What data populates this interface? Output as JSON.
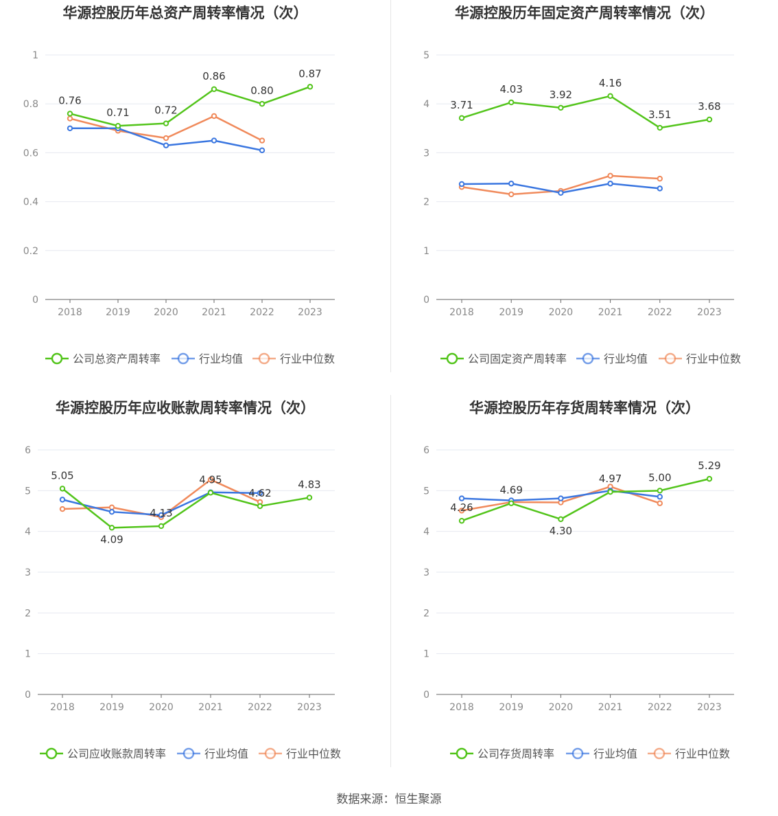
{
  "source": "数据来源：恒生聚源",
  "colors": {
    "company": "#52c41a",
    "avg": "#3a76e0",
    "median": "#f0895a",
    "axis": "#666666",
    "grid": "#e6e8f0",
    "text": "#333333"
  },
  "legend_labels": {
    "avg": "行业均值",
    "median": "行业中位数"
  },
  "chart_data": [
    {
      "type": "line",
      "title": "华源控股历年总资产周转率情况（次）",
      "categories": [
        "2018",
        "2019",
        "2020",
        "2021",
        "2022",
        "2023"
      ],
      "yticks": [
        "0",
        "0.2",
        "0.4",
        "0.6",
        "0.8",
        "1"
      ],
      "ylim": [
        0,
        1
      ],
      "series": [
        {
          "key": "company",
          "name": "公司总资产周转率",
          "values": [
            0.76,
            0.71,
            0.72,
            0.86,
            0.8,
            0.87
          ],
          "labels": [
            "0.76",
            "0.71",
            "0.72",
            "0.86",
            "0.80",
            "0.87"
          ]
        },
        {
          "key": "avg",
          "name": "行业均值",
          "values": [
            0.7,
            0.7,
            0.63,
            0.65,
            0.61,
            null
          ]
        },
        {
          "key": "median",
          "name": "行业中位数",
          "values": [
            0.74,
            0.69,
            0.66,
            0.75,
            0.65,
            null
          ]
        }
      ]
    },
    {
      "type": "line",
      "title": "华源控股历年固定资产周转率情况（次）",
      "categories": [
        "2018",
        "2019",
        "2020",
        "2021",
        "2022",
        "2023"
      ],
      "yticks": [
        "0",
        "1",
        "2",
        "3",
        "4",
        "5"
      ],
      "ylim": [
        0,
        5
      ],
      "series": [
        {
          "key": "company",
          "name": "公司固定资产周转率",
          "values": [
            3.71,
            4.03,
            3.92,
            4.16,
            3.51,
            3.68
          ],
          "labels": [
            "3.71",
            "4.03",
            "3.92",
            "4.16",
            "3.51",
            "3.68"
          ]
        },
        {
          "key": "avg",
          "name": "行业均值",
          "values": [
            2.36,
            2.37,
            2.18,
            2.37,
            2.27,
            null
          ]
        },
        {
          "key": "median",
          "name": "行业中位数",
          "values": [
            2.3,
            2.15,
            2.22,
            2.53,
            2.47,
            null
          ]
        }
      ]
    },
    {
      "type": "line",
      "title": "华源控股历年应收账款周转率情况（次）",
      "categories": [
        "2018",
        "2019",
        "2020",
        "2021",
        "2022",
        "2023"
      ],
      "yticks": [
        "0",
        "1",
        "2",
        "3",
        "4",
        "5",
        "6"
      ],
      "ylim": [
        0,
        6
      ],
      "series": [
        {
          "key": "company",
          "name": "公司应收账款周转率",
          "values": [
            5.05,
            4.09,
            4.13,
            4.95,
            4.62,
            4.83
          ],
          "labels": [
            "5.05",
            "4.09",
            "4.13",
            "4.95",
            "4.62",
            "4.83"
          ]
        },
        {
          "key": "avg",
          "name": "行业均值",
          "values": [
            4.78,
            4.48,
            4.4,
            4.96,
            4.94,
            null
          ]
        },
        {
          "key": "median",
          "name": "行业中位数",
          "values": [
            4.55,
            4.59,
            4.35,
            5.27,
            4.72,
            null
          ]
        }
      ]
    },
    {
      "type": "line",
      "title": "华源控股历年存货周转率情况（次）",
      "categories": [
        "2018",
        "2019",
        "2020",
        "2021",
        "2022",
        "2023"
      ],
      "yticks": [
        "0",
        "1",
        "2",
        "3",
        "4",
        "5",
        "6"
      ],
      "ylim": [
        0,
        6
      ],
      "series": [
        {
          "key": "company",
          "name": "公司存货周转率",
          "values": [
            4.26,
            4.69,
            4.3,
            4.97,
            5.0,
            5.29
          ],
          "labels": [
            "4.26",
            "4.69",
            "4.30",
            "4.97",
            "5.00",
            "5.29"
          ]
        },
        {
          "key": "avg",
          "name": "行业均值",
          "values": [
            4.81,
            4.76,
            4.81,
            5.0,
            4.85,
            null
          ]
        },
        {
          "key": "median",
          "name": "行业中位数",
          "values": [
            4.51,
            4.72,
            4.71,
            5.1,
            4.69,
            null
          ]
        }
      ]
    }
  ]
}
